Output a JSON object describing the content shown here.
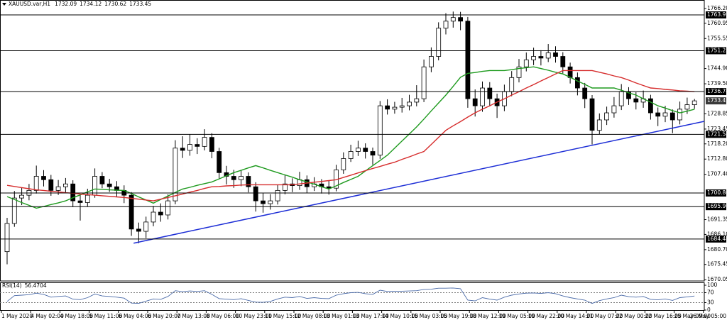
{
  "chart_data": {
    "type": "candlestick",
    "title": "XAUUSD.var,H1",
    "color": "#000000",
    "up_color": "#ffffff",
    "categories": [
      "1 May 2020",
      null,
      null,
      null,
      "4 May 02:00",
      null,
      null,
      null,
      "4 May 18:00",
      null,
      null,
      null,
      "5 May 11:00",
      null,
      null,
      null,
      "6 May 04:00",
      null,
      null,
      null,
      "6 May 20:00",
      null,
      null,
      null,
      "7 May 13:00",
      null,
      null,
      null,
      "8 May 06:00",
      null,
      null,
      null,
      "10 May 23:00",
      null,
      null,
      null,
      "11 May 15:00",
      null,
      null,
      null,
      "12 May 08:00",
      null,
      null,
      null,
      "13 May 01:00",
      null,
      null,
      null,
      "13 May 17:00",
      null,
      null,
      null,
      "14 May 10:00",
      null,
      null,
      null,
      "15 May 03:00",
      null,
      null,
      null,
      "15 May 19:00",
      null,
      null,
      null,
      "18 May 12:00",
      null,
      null,
      null,
      "19 May 05:00",
      null,
      null,
      null,
      "19 May 22:00",
      null,
      null,
      null,
      "20 May 14:00",
      null,
      null,
      null,
      "21 May 07:00",
      null,
      null,
      null,
      "22 May 00:00",
      null,
      null,
      null,
      "22 May 16:00",
      null,
      null,
      null,
      "25 May 09:00",
      null,
      null,
      null,
      "26 May 05:00"
    ],
    "open": [
      1680,
      1690,
      1699,
      1700,
      1701.7,
      1706.7,
      1705.5,
      1701.7,
      1703,
      1704,
      1698,
      1697.4,
      1700,
      1706.7,
      1704,
      1703,
      1701.7,
      1700,
      1688,
      1687.2,
      1690.5,
      1694,
      1693,
      1698,
      1716.7,
      1715.9,
      1718,
      1717.3,
      1720.5,
      1715.5,
      1708,
      1706.7,
      1705.5,
      1706.7,
      1703,
      1698,
      1697,
      1698,
      1701.7,
      1704,
      1703.4,
      1705.5,
      1703,
      1704,
      1703,
      1702.5,
      1709,
      1713,
      1715.5,
      1716.7,
      1715.5,
      1714.2,
      1731.7,
      1730.5,
      1731.2,
      1731.7,
      1733,
      1734.2,
      1745.5,
      1749.2,
      1759.2,
      1761.7,
      1763,
      1761.7,
      1734.2,
      1731.7,
      1738,
      1734.2,
      1731.7,
      1736.7,
      1741.7,
      1745.5,
      1748,
      1749.2,
      1748.6,
      1750.5,
      1749.2,
      1745.5,
      1741.7,
      1738,
      1734.2,
      1723,
      1726.7,
      1729.2,
      1731.7,
      1736.7,
      1734.2,
      1733,
      1734.2,
      1729.2,
      1728,
      1729.2,
      1726.7,
      1730.5,
      1732.09,
      null,
      null
    ],
    "high": [
      1692,
      1701.5,
      1702.8,
      1704,
      1710.5,
      1708.9,
      1707.2,
      1705.4,
      1706.1,
      1705.3,
      1700.2,
      1702.3,
      1709.5,
      1708.2,
      1705.8,
      1705,
      1703.5,
      1701.1,
      1690.3,
      1692.4,
      1696.2,
      1697.1,
      1700.3,
      1719.5,
      1720.9,
      1721.6,
      1720.2,
      1723.4,
      1722,
      1716.8,
      1710.4,
      1709,
      1708.8,
      1708.1,
      1704.6,
      1700.9,
      1700.4,
      1703.6,
      1707.2,
      1706,
      1708.3,
      1707,
      1706.4,
      1705.7,
      1705.1,
      1710.8,
      1715.2,
      1717.9,
      1719.3,
      1718.4,
      1716.9,
      1733.4,
      1734,
      1733.1,
      1734.5,
      1735.6,
      1739,
      1748.1,
      1752.4,
      1761.3,
      1764.5,
      1765.1,
      1765,
      1763.2,
      1737.5,
      1740.3,
      1740.1,
      1736,
      1739.2,
      1744,
      1748.3,
      1750.6,
      1752.3,
      1751.4,
      1753.6,
      1752.8,
      1750.7,
      1747,
      1743.5,
      1739.8,
      1735.5,
      1729,
      1731.4,
      1734.8,
      1739.4,
      1738.3,
      1736.5,
      1737.1,
      1735.6,
      1731.1,
      1731.7,
      1730.4,
      1733.2,
      1734.6,
      1734.12,
      null,
      null
    ],
    "low": [
      1675.5,
      1688.8,
      1696.5,
      1698.2,
      1700.6,
      1703.1,
      1699.8,
      1700.1,
      1700.9,
      1695.8,
      1691,
      1695.9,
      1699.1,
      1702.5,
      1701.2,
      1699.4,
      1697.2,
      1685.6,
      1683,
      1684.8,
      1689,
      1690.6,
      1691.4,
      1696.8,
      1713.2,
      1714,
      1714.6,
      1715.9,
      1713.1,
      1705.9,
      1703.8,
      1702.6,
      1703.2,
      1701,
      1694.2,
      1693.8,
      1694.9,
      1696.7,
      1700.3,
      1701.1,
      1701.9,
      1700.8,
      1701.5,
      1700.6,
      1700.2,
      1701.4,
      1707.6,
      1711.8,
      1713.9,
      1713,
      1710.8,
      1712.9,
      1728.6,
      1728.9,
      1729.3,
      1730.1,
      1731.5,
      1733,
      1743.6,
      1747.8,
      1757,
      1759.4,
      1758.5,
      1731,
      1727.9,
      1729.6,
      1731.5,
      1727.4,
      1729.8,
      1735.1,
      1740,
      1743.9,
      1746.1,
      1746,
      1747.2,
      1747,
      1743.2,
      1739.6,
      1735.4,
      1730.9,
      1718,
      1721.6,
      1724.9,
      1727.5,
      1730.2,
      1732,
      1730.4,
      1731,
      1726.8,
      1724.5,
      1725.9,
      1722,
      1725.1,
      1728.8,
      1730.62,
      null,
      null
    ],
    "close": [
      1690,
      1699,
      1700,
      1701.7,
      1706.7,
      1705.5,
      1701.7,
      1703,
      1704,
      1698,
      1697.4,
      1700,
      1706.7,
      1704,
      1703,
      1701.7,
      1700,
      1688,
      1687.2,
      1690.5,
      1694,
      1693,
      1698,
      1716.7,
      1715.9,
      1718,
      1717.3,
      1720.5,
      1715.5,
      1708,
      1706.7,
      1705.5,
      1706.7,
      1703,
      1698,
      1697,
      1698,
      1701.7,
      1704,
      1703.4,
      1705.5,
      1703,
      1704,
      1703,
      1702.5,
      1709,
      1713,
      1715.5,
      1716.7,
      1715.5,
      1714.2,
      1731.7,
      1730.5,
      1731.2,
      1731.7,
      1733,
      1734.2,
      1745.5,
      1749.2,
      1759.2,
      1761.7,
      1763,
      1761.7,
      1734.2,
      1731.7,
      1738,
      1734.2,
      1731.7,
      1736.7,
      1741.7,
      1745.5,
      1748,
      1749.2,
      1748.6,
      1750.5,
      1749.2,
      1745.5,
      1741.7,
      1738,
      1734.2,
      1723,
      1726.7,
      1729.2,
      1731.7,
      1736.7,
      1734.2,
      1733,
      1734.2,
      1729.2,
      1728,
      1729.2,
      1726.7,
      1730.5,
      1732.09,
      1733.45,
      null,
      null
    ],
    "lines": [
      {
        "color": "#1e9a1e",
        "values": [
          1699.5,
          1698.5,
          1697.4,
          1696.4,
          1695.4,
          1696,
          1696.7,
          1697.3,
          1698,
          1699.1,
          1700.1,
          1701.2,
          1702.2,
          1702.1,
          1701.9,
          1701.8,
          1701.7,
          1700.6,
          1699.4,
          1698.3,
          1697.2,
          1698.5,
          1699.7,
          1701,
          1702.2,
          1702.8,
          1703.5,
          1704.1,
          1704.7,
          1705.8,
          1706.9,
          1708,
          1708.8,
          1709.7,
          1710.5,
          1709.7,
          1708.8,
          1708,
          1707.2,
          1706.4,
          1705.5,
          1704.7,
          1703.9,
          1703,
          1702.2,
          1703.3,
          1704.5,
          1705.6,
          1706.7,
          1708.6,
          1710.5,
          1712.3,
          1714.2,
          1716.7,
          1719.2,
          1721.7,
          1724.2,
          1727,
          1729.9,
          1732.7,
          1735.5,
          1738.6,
          1741.8,
          1743.2,
          1743.5,
          1743.9,
          1744.2,
          1744.2,
          1744.2,
          1744.5,
          1744.9,
          1745.2,
          1745.5,
          1744.9,
          1744.3,
          1743.6,
          1743,
          1741.8,
          1740.5,
          1739.3,
          1738,
          1738,
          1738,
          1738,
          1737.2,
          1736.3,
          1735.5,
          1734.2,
          1733,
          1731.7,
          1730.9,
          1730,
          1729.2,
          1729.8,
          1730.5,
          null,
          null
        ]
      },
      {
        "color": "#d62c2c",
        "values": [
          1703.5,
          1703.1,
          1702.7,
          1702.3,
          1701.9,
          1701.7,
          1701.4,
          1701.2,
          1700.9,
          1700.7,
          1700.4,
          1700.2,
          1700,
          1699.8,
          1699.6,
          1699.4,
          1699.2,
          1698.9,
          1698.6,
          1698.3,
          1698,
          1698.6,
          1699.2,
          1699.8,
          1700.4,
          1701.1,
          1701.7,
          1702.4,
          1703,
          1703.1,
          1703.3,
          1703.4,
          1703.6,
          1703.7,
          1703.7,
          1703.7,
          1703.7,
          1703.7,
          1703.7,
          1703.7,
          1704,
          1704.3,
          1704.6,
          1704.9,
          1705.2,
          1705.5,
          1706.3,
          1707.1,
          1707.9,
          1708.7,
          1709.5,
          1710.2,
          1711,
          1711.7,
          1712.7,
          1713.6,
          1714.6,
          1715.5,
          1718,
          1720.5,
          1723,
          1724.6,
          1726.1,
          1727.7,
          1729.2,
          1730.5,
          1731.7,
          1733,
          1734.2,
          1735.5,
          1736.7,
          1738,
          1739.2,
          1740.5,
          1741.7,
          1743,
          1744.2,
          1744.2,
          1744.2,
          1744.2,
          1744.2,
          1743.6,
          1743,
          1742.3,
          1741.7,
          1740.8,
          1739.8,
          1738.9,
          1738,
          1737.8,
          1737.5,
          1737.3,
          1737,
          1736.9,
          1736.7,
          null,
          null
        ]
      }
    ],
    "trendline": {
      "color": "#1d2ed6",
      "values": [
        1683,
        1726.2
      ]
    },
    "levels": [
      1763.91,
      1751.23,
      1736.74,
      1721.58,
      {
        "value": 1700.8,
        "label": "1700.80"
      },
      1695.96,
      1684.48
    ],
    "ylim": [
      1669.6,
      1769.2
    ],
    "yticks": [
      {
        "value": 1766.2,
        "label": "1766.20"
      },
      1760.95,
      1755.55,
      {
        "value": 1744.9,
        "label": "1744.90"
      },
      {
        "value": 1739.5,
        "label": "1739.50"
      },
      1728.85,
      1723.45,
      {
        "value": 1718.2,
        "label": "1718.20"
      },
      {
        "value": 1712.8,
        "label": "1712.80"
      },
      {
        "value": 1707.4,
        "label": "1707.40"
      },
      1691.35,
      {
        "value": 1686.1,
        "label": "1686.10"
      },
      {
        "value": 1680.7,
        "label": "1680.70"
      },
      1675.45,
      1670.05
    ],
    "rsi": {
      "name": "RSI(14)",
      "color": "#4a6aa8",
      "ylim": [
        0,
        100
      ],
      "yticks": [
        100,
        70,
        30,
        0
      ],
      "values": [
        35,
        58,
        60,
        62,
        68,
        63,
        52,
        55,
        57,
        44,
        42,
        50,
        65,
        57,
        55,
        52,
        48,
        28,
        27,
        36,
        45,
        43,
        55,
        78,
        74,
        77,
        75,
        78,
        63,
        46,
        44,
        42,
        46,
        39,
        32,
        31,
        35,
        45,
        52,
        50,
        55,
        47,
        50,
        47,
        46,
        60,
        66,
        70,
        71,
        66,
        63,
        80,
        75,
        76,
        76,
        77,
        78,
        83,
        84,
        88,
        88,
        89,
        86,
        40,
        37,
        50,
        44,
        40,
        52,
        60,
        65,
        68,
        69,
        67,
        70,
        66,
        57,
        50,
        45,
        40,
        27,
        38,
        45,
        50,
        60,
        54,
        52,
        55,
        43,
        41,
        45,
        39,
        50,
        53,
        56.4704,
        null,
        null
      ]
    }
  }
}
